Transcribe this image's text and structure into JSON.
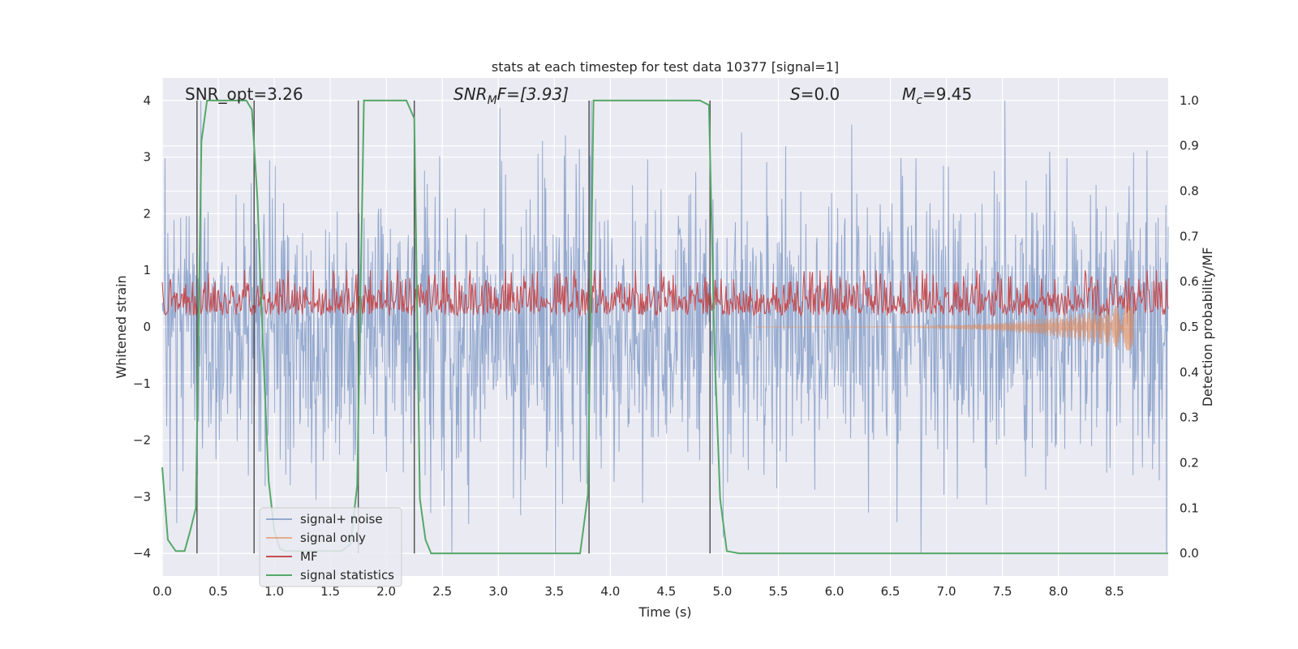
{
  "chart_data": {
    "type": "line",
    "title": "stats at each timestep for test data 10377 [signal=1]",
    "xlabel": "Time (s)",
    "ylabel": "Whitened strain",
    "ylabel_right": "Detection probability/MF",
    "xlim": [
      0.0,
      8.98
    ],
    "ylim": [
      -4.4,
      4.4
    ],
    "ylim_right": [
      -0.05,
      1.05
    ],
    "x_ticks": [
      "0.0",
      "0.5",
      "1.0",
      "1.5",
      "2.0",
      "2.5",
      "3.0",
      "3.5",
      "4.0",
      "4.5",
      "5.0",
      "5.5",
      "6.0",
      "6.5",
      "7.0",
      "7.5",
      "8.0",
      "8.5"
    ],
    "y_ticks": [
      "−4",
      "−3",
      "−2",
      "−1",
      "0",
      "1",
      "2",
      "3",
      "4"
    ],
    "y_ticks_right": [
      "0.0",
      "0.1",
      "0.2",
      "0.3",
      "0.4",
      "0.5",
      "0.6",
      "0.7",
      "0.8",
      "0.9",
      "1.0"
    ],
    "grid": true,
    "colors": {
      "background": "#eaeaf2",
      "grid": "#ffffff",
      "signal_noise": "#4c72b0",
      "signal_only": "#dd8452",
      "mf": "#c44e52",
      "statistics": "#55a868",
      "vlines": "#555555"
    },
    "annotations": {
      "snr_opt": "SNR_opt=3.26",
      "snr_mf_base": "SNR",
      "snr_mf_sub": "M",
      "snr_mf_rest": "F=[3.93]",
      "s_base": "S",
      "s_rest": "=0.0",
      "mc_base": "M",
      "mc_sub": "c",
      "mc_rest": "=9.45"
    },
    "legend": {
      "position": "lower-left",
      "entries": [
        "signal+ noise",
        "signal only",
        "MF",
        "signal statistics"
      ]
    },
    "noise": {
      "name": "signal+ noise",
      "std": 1.0,
      "max": 4.0,
      "min": -4.0,
      "n_samples": 1800
    },
    "signal_only": {
      "name": "signal only",
      "t_start": 5.3,
      "t_end": 8.67,
      "max_amplitude": 0.45
    },
    "mf": {
      "name": "MF",
      "baseline": 0.2,
      "peak": 1.0
    },
    "statistics": {
      "name": "signal statistics",
      "axis": "right",
      "x": [
        0.0,
        0.05,
        0.12,
        0.2,
        0.25,
        0.3,
        0.35,
        0.4,
        0.45,
        0.55,
        0.65,
        0.75,
        0.8,
        0.85,
        0.9,
        0.95,
        1.0,
        1.05,
        1.1,
        1.2,
        1.3,
        1.4,
        1.5,
        1.6,
        1.68,
        1.74,
        1.8,
        2.0,
        2.1,
        2.18,
        2.25,
        2.3,
        2.35,
        2.4,
        2.6,
        3.0,
        3.4,
        3.73,
        3.8,
        3.85,
        3.9,
        4.0,
        4.2,
        4.5,
        4.8,
        4.88,
        4.93,
        4.98,
        5.04,
        5.15,
        5.5,
        6.0,
        6.5,
        7.0,
        7.5,
        8.0,
        8.5,
        8.98
      ],
      "y": [
        0.19,
        0.03,
        0.005,
        0.005,
        0.05,
        0.1,
        0.91,
        1.0,
        1.0,
        1.0,
        1.0,
        1.0,
        0.98,
        0.78,
        0.45,
        0.16,
        0.05,
        0.01,
        0.005,
        0.005,
        0.005,
        0.005,
        0.005,
        0.005,
        0.02,
        0.15,
        1.0,
        1.0,
        1.0,
        1.0,
        0.96,
        0.12,
        0.03,
        0.0,
        0.0,
        0.0,
        0.0,
        0.0,
        0.13,
        1.0,
        1.0,
        1.0,
        1.0,
        1.0,
        1.0,
        0.99,
        0.45,
        0.12,
        0.005,
        0.0,
        0.0,
        0.0,
        0.0,
        0.0,
        0.0,
        0.0,
        0.0,
        0.0
      ]
    },
    "vertical_lines_x": [
      0.31,
      0.82,
      1.75,
      2.25,
      3.81,
      4.89
    ],
    "vertical_lines_range": [
      -4.0,
      4.0
    ]
  }
}
